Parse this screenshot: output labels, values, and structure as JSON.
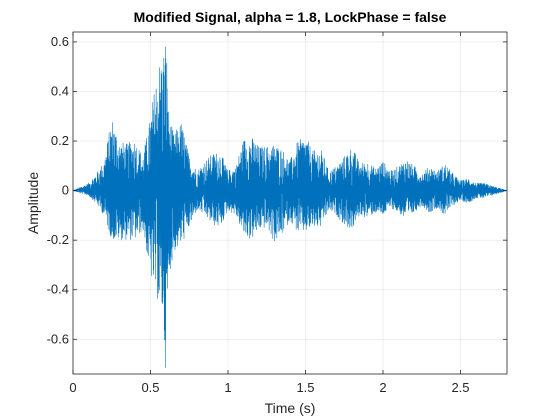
{
  "chart_data": {
    "type": "line",
    "title": "Modified Signal, alpha = 1.8, LockPhase = false",
    "xlabel": "Time (s)",
    "ylabel": "Amplitude",
    "xlim": [
      0,
      2.8
    ],
    "ylim": [
      -0.74,
      0.64
    ],
    "xticks": [
      0,
      0.5,
      1,
      1.5,
      2,
      2.5
    ],
    "xtick_labels": [
      "0",
      "0.5",
      "1",
      "1.5",
      "2",
      "2.5"
    ],
    "yticks": [
      -0.6,
      -0.4,
      -0.2,
      0,
      0.2,
      0.4,
      0.6
    ],
    "ytick_labels": [
      "-0.6",
      "-0.4",
      "-0.2",
      "0",
      "0.2",
      "0.4",
      "0.6"
    ],
    "grid": true,
    "line_color": "#0072BD",
    "series": [
      {
        "envelope": {
          "t": [
            0,
            0.1,
            0.15,
            0.2,
            0.25,
            0.3,
            0.35,
            0.4,
            0.45,
            0.5,
            0.55,
            0.58,
            0.6,
            0.62,
            0.65,
            0.7,
            0.75,
            0.8,
            0.85,
            0.9,
            0.95,
            1.0,
            1.05,
            1.1,
            1.15,
            1.2,
            1.25,
            1.3,
            1.35,
            1.4,
            1.45,
            1.5,
            1.55,
            1.6,
            1.65,
            1.7,
            1.75,
            1.8,
            1.85,
            1.9,
            1.95,
            2.0,
            2.05,
            2.1,
            2.15,
            2.2,
            2.25,
            2.3,
            2.35,
            2.4,
            2.45,
            2.5,
            2.55,
            2.6,
            2.65,
            2.7,
            2.75,
            2.8
          ],
          "upper": [
            0.0,
            0.03,
            0.07,
            0.12,
            0.3,
            0.2,
            0.19,
            0.21,
            0.14,
            0.3,
            0.52,
            0.55,
            0.64,
            0.3,
            0.23,
            0.28,
            0.14,
            0.08,
            0.12,
            0.15,
            0.16,
            0.08,
            0.1,
            0.21,
            0.22,
            0.18,
            0.18,
            0.19,
            0.17,
            0.12,
            0.2,
            0.22,
            0.16,
            0.17,
            0.08,
            0.1,
            0.14,
            0.18,
            0.11,
            0.12,
            0.09,
            0.12,
            0.08,
            0.1,
            0.13,
            0.1,
            0.07,
            0.1,
            0.08,
            0.11,
            0.07,
            0.04,
            0.05,
            0.03,
            0.03,
            0.02,
            0.01,
            0.0
          ],
          "lower": [
            0.0,
            -0.02,
            -0.05,
            -0.1,
            -0.2,
            -0.2,
            -0.2,
            -0.2,
            -0.16,
            -0.35,
            -0.45,
            -0.52,
            -0.74,
            -0.35,
            -0.25,
            -0.22,
            -0.15,
            -0.08,
            -0.1,
            -0.14,
            -0.15,
            -0.08,
            -0.1,
            -0.18,
            -0.2,
            -0.16,
            -0.15,
            -0.21,
            -0.18,
            -0.12,
            -0.17,
            -0.17,
            -0.15,
            -0.15,
            -0.08,
            -0.1,
            -0.14,
            -0.16,
            -0.1,
            -0.11,
            -0.09,
            -0.1,
            -0.07,
            -0.09,
            -0.12,
            -0.09,
            -0.06,
            -0.09,
            -0.07,
            -0.1,
            -0.06,
            -0.04,
            -0.05,
            -0.03,
            -0.03,
            -0.02,
            -0.01,
            0.0
          ]
        }
      }
    ]
  }
}
